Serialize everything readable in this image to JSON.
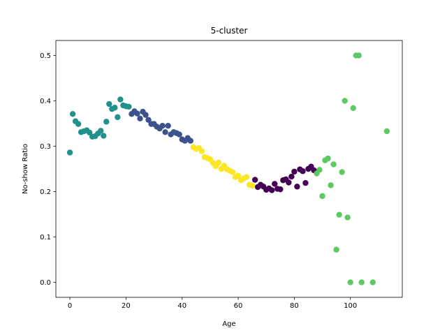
{
  "chart_data": {
    "type": "scatter",
    "title": "5-cluster",
    "xlabel": "Age",
    "ylabel": "No-show Ratio",
    "xlim": [
      -5,
      118.5
    ],
    "ylim": [
      -0.033,
      0.533
    ],
    "xticks": [
      0,
      20,
      40,
      60,
      80,
      100
    ],
    "yticks": [
      0.0,
      0.1,
      0.2,
      0.3,
      0.4,
      0.5
    ],
    "xtick_labels": [
      "0",
      "20",
      "40",
      "60",
      "80",
      "100"
    ],
    "ytick_labels": [
      "0.0",
      "0.1",
      "0.2",
      "0.3",
      "0.4",
      "0.5"
    ],
    "grid": false,
    "legend": null,
    "series": [
      {
        "color": "#21918c",
        "points": [
          [
            0,
            0.286
          ],
          [
            1,
            0.371
          ],
          [
            2,
            0.355
          ],
          [
            3,
            0.349
          ],
          [
            4,
            0.331
          ],
          [
            5,
            0.333
          ],
          [
            6,
            0.335
          ],
          [
            7,
            0.33
          ],
          [
            8,
            0.321
          ],
          [
            9,
            0.322
          ],
          [
            10,
            0.328
          ],
          [
            11,
            0.334
          ],
          [
            12,
            0.323
          ],
          [
            13,
            0.354
          ],
          [
            14,
            0.393
          ],
          [
            15,
            0.382
          ],
          [
            16,
            0.385
          ],
          [
            17,
            0.364
          ],
          [
            18,
            0.403
          ],
          [
            19,
            0.39
          ],
          [
            20,
            0.388
          ],
          [
            21,
            0.387
          ]
        ]
      },
      {
        "color": "#3b528b",
        "points": [
          [
            22,
            0.371
          ],
          [
            23,
            0.377
          ],
          [
            24,
            0.372
          ],
          [
            25,
            0.361
          ],
          [
            26,
            0.376
          ],
          [
            27,
            0.369
          ],
          [
            28,
            0.358
          ],
          [
            29,
            0.349
          ],
          [
            30,
            0.349
          ],
          [
            31,
            0.343
          ],
          [
            32,
            0.339
          ],
          [
            33,
            0.345
          ],
          [
            34,
            0.331
          ],
          [
            35,
            0.345
          ],
          [
            36,
            0.326
          ],
          [
            37,
            0.331
          ],
          [
            38,
            0.329
          ],
          [
            39,
            0.326
          ],
          [
            40,
            0.315
          ],
          [
            41,
            0.312
          ],
          [
            42,
            0.318
          ],
          [
            43,
            0.312
          ]
        ]
      },
      {
        "color": "#fde725",
        "points": [
          [
            44,
            0.298
          ],
          [
            45,
            0.294
          ],
          [
            46,
            0.296
          ],
          [
            47,
            0.289
          ],
          [
            48,
            0.276
          ],
          [
            49,
            0.274
          ],
          [
            50,
            0.271
          ],
          [
            51,
            0.263
          ],
          [
            52,
            0.256
          ],
          [
            53,
            0.264
          ],
          [
            54,
            0.25
          ],
          [
            55,
            0.257
          ],
          [
            56,
            0.249
          ],
          [
            57,
            0.246
          ],
          [
            58,
            0.243
          ],
          [
            59,
            0.232
          ],
          [
            60,
            0.235
          ],
          [
            61,
            0.225
          ],
          [
            62,
            0.229
          ],
          [
            63,
            0.232
          ],
          [
            64,
            0.215
          ],
          [
            65,
            0.213
          ]
        ]
      },
      {
        "color": "#440154",
        "points": [
          [
            66,
            0.226
          ],
          [
            67,
            0.21
          ],
          [
            68,
            0.215
          ],
          [
            69,
            0.211
          ],
          [
            70,
            0.204
          ],
          [
            71,
            0.207
          ],
          [
            72,
            0.203
          ],
          [
            73,
            0.217
          ],
          [
            74,
            0.206
          ],
          [
            75,
            0.205
          ],
          [
            76,
            0.225
          ],
          [
            77,
            0.227
          ],
          [
            78,
            0.22
          ],
          [
            79,
            0.233
          ],
          [
            80,
            0.244
          ],
          [
            81,
            0.211
          ],
          [
            82,
            0.249
          ],
          [
            83,
            0.245
          ],
          [
            84,
            0.219
          ],
          [
            85,
            0.25
          ],
          [
            86,
            0.255
          ],
          [
            87,
            0.247
          ]
        ]
      },
      {
        "color": "#5ec962",
        "points": [
          [
            88,
            0.24
          ],
          [
            89,
            0.248
          ],
          [
            90,
            0.19
          ],
          [
            91,
            0.269
          ],
          [
            92,
            0.273
          ],
          [
            93,
            0.214
          ],
          [
            94,
            0.26
          ],
          [
            95,
            0.072
          ],
          [
            96,
            0.149
          ],
          [
            97,
            0.243
          ],
          [
            98,
            0.4
          ],
          [
            99,
            0.143
          ],
          [
            100,
            0.0
          ],
          [
            101,
            0.384
          ],
          [
            102,
            0.5
          ],
          [
            103,
            0.5
          ],
          [
            104,
            0.0
          ],
          [
            108,
            0.0
          ],
          [
            113,
            0.333
          ]
        ]
      }
    ]
  }
}
